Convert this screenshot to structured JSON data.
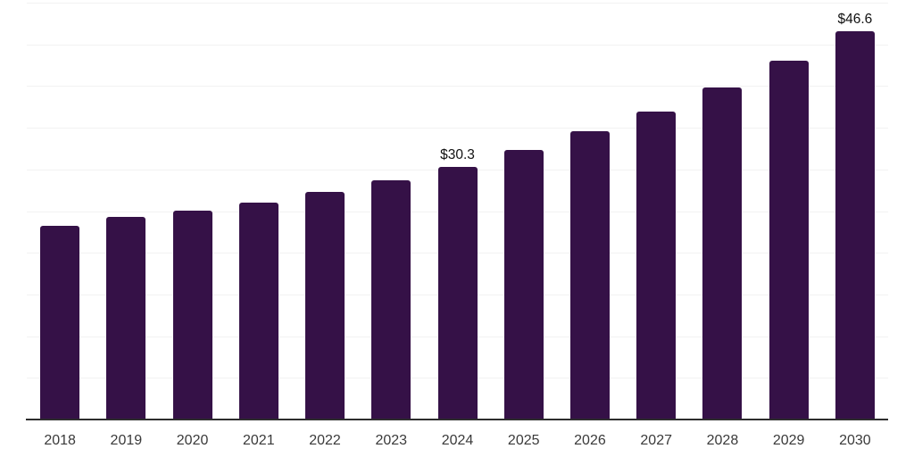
{
  "chart_data": {
    "type": "bar",
    "title": "",
    "xlabel": "",
    "ylabel": "",
    "categories": [
      "2018",
      "2019",
      "2020",
      "2021",
      "2022",
      "2023",
      "2024",
      "2025",
      "2026",
      "2027",
      "2028",
      "2029",
      "2030"
    ],
    "values": [
      23.2,
      24.3,
      25.1,
      26.0,
      27.3,
      28.7,
      30.3,
      32.3,
      34.6,
      36.9,
      39.8,
      43.0,
      46.6
    ],
    "data_labels": [
      "",
      "",
      "",
      "",
      "",
      "",
      "$30.3",
      "",
      "",
      "",
      "",
      "",
      "$46.6"
    ],
    "ylim": [
      0,
      50
    ],
    "grid_step": 5,
    "grid": "horizontal-only",
    "legend_position": "none",
    "y_axis_tick_labels_visible": false,
    "colors": {
      "bar": "#351147",
      "grid": "#f2f2f2",
      "axis": "#2e2e2e",
      "tick_label": "#3a3a3a",
      "data_label": "#111111",
      "background": "#ffffff"
    }
  }
}
